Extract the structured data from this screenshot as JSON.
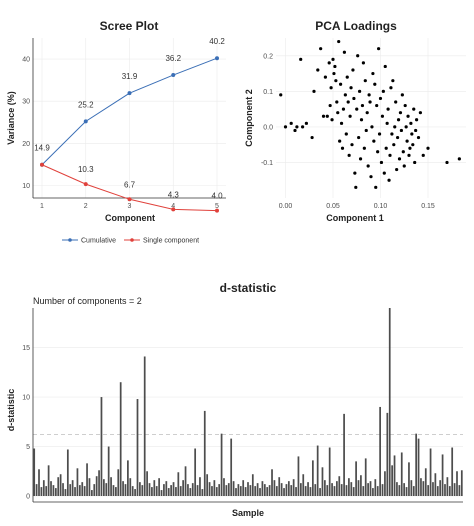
{
  "chart_data": [
    {
      "type": "line",
      "title": "Scree Plot",
      "xlabel": "Component",
      "ylabel": "Variance (%)",
      "x": [
        1,
        2,
        3,
        4,
        5
      ],
      "xticks": [
        "1",
        "2",
        "3",
        "4",
        "5"
      ],
      "ylim": [
        7,
        45
      ],
      "yticks": [
        "10",
        "20",
        "30",
        "40"
      ],
      "grid": true,
      "legend_position": "bottom",
      "series": [
        {
          "name": "Cumulative",
          "color": "#3b6fb6",
          "values": [
            14.9,
            25.2,
            31.9,
            36.2,
            40.2
          ],
          "labels": [
            "14.9",
            "25.2",
            "31.9",
            "36.2",
            "40.2"
          ]
        },
        {
          "name": "Single component",
          "color": "#e0413b",
          "values": [
            14.9,
            10.3,
            6.7,
            4.3,
            4.0
          ],
          "labels": [
            "",
            "10.3",
            "6.7",
            "4.3",
            "4.0"
          ]
        }
      ]
    },
    {
      "type": "scatter",
      "title": "PCA Loadings",
      "xlabel": "Component 1",
      "ylabel": "Component 2",
      "xlim": [
        -0.01,
        0.19
      ],
      "ylim": [
        -0.2,
        0.25
      ],
      "xticks": [
        "0.00",
        "0.05",
        "0.10",
        "0.15"
      ],
      "yticks": [
        "-0.1",
        "0.0",
        "0.1",
        "0.2"
      ],
      "grid": true,
      "color": "#000000",
      "points": [
        [
          -0.005,
          0.09
        ],
        [
          0.0,
          0.0
        ],
        [
          0.006,
          0.01
        ],
        [
          0.01,
          -0.01
        ],
        [
          0.012,
          0.0
        ],
        [
          0.016,
          0.19
        ],
        [
          0.018,
          0.0
        ],
        [
          0.022,
          0.01
        ],
        [
          0.028,
          -0.03
        ],
        [
          0.03,
          0.1
        ],
        [
          0.034,
          0.16
        ],
        [
          0.037,
          0.22
        ],
        [
          0.04,
          0.03
        ],
        [
          0.042,
          0.14
        ],
        [
          0.044,
          0.03
        ],
        [
          0.046,
          0.18
        ],
        [
          0.047,
          0.06
        ],
        [
          0.048,
          0.11
        ],
        [
          0.049,
          0.02
        ],
        [
          0.05,
          0.19
        ],
        [
          0.051,
          0.15
        ],
        [
          0.052,
          0.17
        ],
        [
          0.053,
          0.13
        ],
        [
          0.054,
          0.07
        ],
        [
          0.055,
          0.04
        ],
        [
          0.056,
          0.24
        ],
        [
          0.057,
          -0.04
        ],
        [
          0.058,
          0.12
        ],
        [
          0.059,
          0.01
        ],
        [
          0.06,
          -0.06
        ],
        [
          0.061,
          0.05
        ],
        [
          0.062,
          0.21
        ],
        [
          0.063,
          0.09
        ],
        [
          0.064,
          -0.02
        ],
        [
          0.065,
          0.14
        ],
        [
          0.066,
          0.07
        ],
        [
          0.067,
          -0.08
        ],
        [
          0.068,
          0.03
        ],
        [
          0.069,
          0.11
        ],
        [
          0.07,
          -0.05
        ],
        [
          0.071,
          0.16
        ],
        [
          0.072,
          0.08
        ],
        [
          0.073,
          -0.13
        ],
        [
          0.074,
          -0.17
        ],
        [
          0.075,
          0.05
        ],
        [
          0.076,
          0.2
        ],
        [
          0.077,
          -0.03
        ],
        [
          0.078,
          0.1
        ],
        [
          0.079,
          -0.09
        ],
        [
          0.08,
          0.02
        ],
        [
          0.081,
          0.06
        ],
        [
          0.082,
          0.18
        ],
        [
          0.083,
          -0.06
        ],
        [
          0.084,
          0.13
        ],
        [
          0.085,
          -0.01
        ],
        [
          0.086,
          0.04
        ],
        [
          0.087,
          -0.11
        ],
        [
          0.088,
          0.09
        ],
        [
          0.089,
          0.07
        ],
        [
          0.09,
          -0.14
        ],
        [
          0.091,
          0.0
        ],
        [
          0.092,
          0.15
        ],
        [
          0.093,
          -0.04
        ],
        [
          0.094,
          0.12
        ],
        [
          0.095,
          -0.17
        ],
        [
          0.096,
          0.06
        ],
        [
          0.097,
          -0.07
        ],
        [
          0.098,
          0.22
        ],
        [
          0.099,
          -0.02
        ],
        [
          0.1,
          0.08
        ],
        [
          0.101,
          -0.1
        ],
        [
          0.102,
          0.03
        ],
        [
          0.103,
          0.1
        ],
        [
          0.104,
          -0.13
        ],
        [
          0.105,
          0.17
        ],
        [
          0.106,
          -0.06
        ],
        [
          0.107,
          0.01
        ],
        [
          0.108,
          0.05
        ],
        [
          0.109,
          -0.15
        ],
        [
          0.11,
          -0.08
        ],
        [
          0.111,
          0.11
        ],
        [
          0.112,
          -0.02
        ],
        [
          0.113,
          0.13
        ],
        [
          0.114,
          -0.05
        ],
        [
          0.115,
          0.0
        ],
        [
          0.116,
          0.07
        ],
        [
          0.117,
          -0.12
        ],
        [
          0.118,
          -0.03
        ],
        [
          0.119,
          0.02
        ],
        [
          0.12,
          -0.09
        ],
        [
          0.121,
          0.04
        ],
        [
          0.122,
          -0.01
        ],
        [
          0.123,
          0.09
        ],
        [
          0.124,
          -0.07
        ],
        [
          0.125,
          -0.11
        ],
        [
          0.126,
          0.06
        ],
        [
          0.127,
          0.0
        ],
        [
          0.128,
          -0.04
        ],
        [
          0.129,
          0.03
        ],
        [
          0.13,
          -0.08
        ],
        [
          0.131,
          -0.06
        ],
        [
          0.132,
          0.01
        ],
        [
          0.133,
          -0.02
        ],
        [
          0.134,
          -0.05
        ],
        [
          0.135,
          0.05
        ],
        [
          0.136,
          -0.1
        ],
        [
          0.137,
          -0.01
        ],
        [
          0.138,
          0.02
        ],
        [
          0.14,
          -0.03
        ],
        [
          0.142,
          0.04
        ],
        [
          0.145,
          -0.08
        ],
        [
          0.15,
          -0.06
        ],
        [
          0.17,
          -0.1
        ],
        [
          0.183,
          -0.09
        ]
      ]
    },
    {
      "type": "bar",
      "title": "d-statistic",
      "subtitle": "Number of components = 2",
      "xlabel": "Sample",
      "ylabel": "d-statistic",
      "ylim": [
        0,
        19
      ],
      "yticks": [
        "0",
        "5",
        "10",
        "15"
      ],
      "threshold": 6.2,
      "grid": true,
      "color": "#4d4d4d",
      "values": [
        4.8,
        1.2,
        2.7,
        0.9,
        1.6,
        1.0,
        3.1,
        1.5,
        1.1,
        0.8,
        1.9,
        2.2,
        1.3,
        0.7,
        4.7,
        1.2,
        1.6,
        0.9,
        2.8,
        1.1,
        1.4,
        1.0,
        3.3,
        1.8,
        0.6,
        1.2,
        2.0,
        2.6,
        10.0,
        1.7,
        1.3,
        5.0,
        1.9,
        1.1,
        0.9,
        2.7,
        11.5,
        1.5,
        1.2,
        3.6,
        1.8,
        1.0,
        0.7,
        9.8,
        1.4,
        1.1,
        14.1,
        2.5,
        1.3,
        0.9,
        1.6,
        1.0,
        1.8,
        0.6,
        1.2,
        1.5,
        0.8,
        1.1,
        1.4,
        0.9,
        2.4,
        1.0,
        1.6,
        3.0,
        1.2,
        0.8,
        1.3,
        4.8,
        1.1,
        1.9,
        0.7,
        8.6,
        2.2,
        1.4,
        1.0,
        1.6,
        0.9,
        1.2,
        6.3,
        1.8,
        1.1,
        1.3,
        5.8,
        1.5,
        0.8,
        1.2,
        1.0,
        1.6,
        0.9,
        1.4,
        1.1,
        2.2,
        1.0,
        1.3,
        0.8,
        1.5,
        1.2,
        0.9,
        1.1,
        2.7,
        1.6,
        1.0,
        1.9,
        1.3,
        0.8,
        1.2,
        1.5,
        1.1,
        1.7,
        0.9,
        4.0,
        1.3,
        2.2,
        1.0,
        1.4,
        0.9,
        3.6,
        1.2,
        5.1,
        0.8,
        2.9,
        1.6,
        1.1,
        4.9,
        1.3,
        1.0,
        1.5,
        2.0,
        1.2,
        8.3,
        1.1,
        1.8,
        1.4,
        0.9,
        3.5,
        1.6,
        2.1,
        1.0,
        3.8,
        1.3,
        1.5,
        0.8,
        1.7,
        1.0,
        9.0,
        1.2,
        2.5,
        8.4,
        19.0,
        3.1,
        4.1,
        1.4,
        1.1,
        4.4,
        1.3,
        0.9,
        3.4,
        1.6,
        1.0,
        6.3,
        5.8,
        1.8,
        1.5,
        2.8,
        1.1,
        4.8,
        1.4,
        2.3,
        1.0,
        1.6,
        4.2,
        1.2,
        1.9,
        1.0,
        4.9,
        1.3,
        2.5,
        1.1,
        2.6
      ]
    }
  ]
}
